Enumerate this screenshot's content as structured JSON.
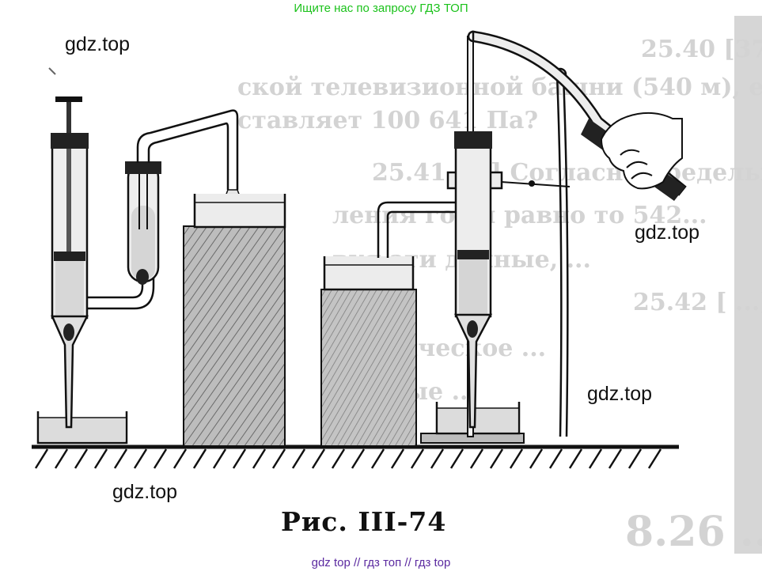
{
  "banner_top": "Ищите нас по запросу ГДЗ ТОП",
  "watermarks": [
    "gdz.top",
    "gdz.top",
    "gdz.top",
    "gdz.top"
  ],
  "caption": "Рис. III-74",
  "banner_bottom": "gdz top  //  гдз топ  //  гдз top",
  "background_text": [
    "25.40 [374] Чему равно давление на",
    "ской телевизионной башни (540 м), ес",
    "ставляет 100 641 Па?",
    "25.41 [...] Согласно предельным",
    "ления горы равно то 542...",
    "вуя эти данные, ...",
    "25.42 [ ...]",
    "космическое ...",
    "фонные ...",
    "ления ...",
    "8.26 ...  Манометр"
  ],
  "colors": {
    "ink": "#111111",
    "glass_fill": "#e9e9e9",
    "water": "#dcdcdc",
    "banner_top": "#1bc21b",
    "banner_bottom": "#5b2aa0"
  }
}
